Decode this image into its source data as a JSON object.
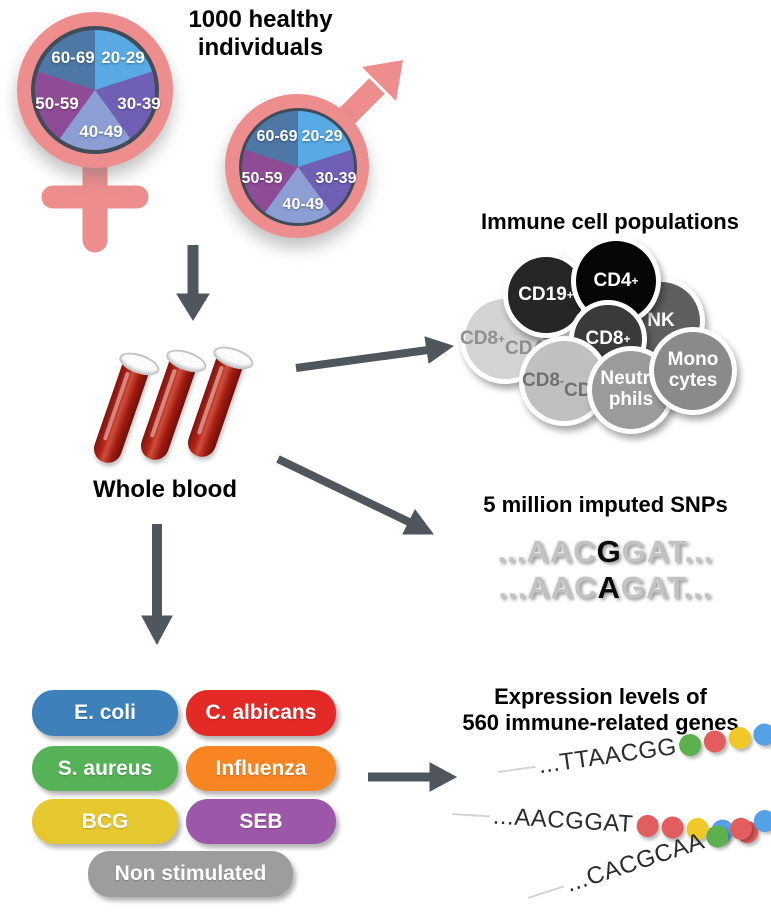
{
  "palette": {
    "symbol_salmon": "#ee8d8d",
    "arrow_gray": "#4f565e",
    "pie_border": "#404c5a",
    "blood_red": "#a81c12"
  },
  "cohort": {
    "title": "1000 healthy\nindividuals",
    "age_groups": [
      "20-29",
      "30-39",
      "40-49",
      "50-59",
      "60-69"
    ],
    "pie_colors": [
      "#58a9e4",
      "#6f60b5",
      "#8c9ed4",
      "#8e4b96",
      "#4d77a4"
    ]
  },
  "whole_blood": {
    "label": "Whole blood"
  },
  "immune_cells": {
    "title": "Immune cell populations",
    "cells": [
      {
        "label": "CD8+\nCD4+",
        "bg": "#d3d3d3",
        "fg": "#8f8f8f"
      },
      {
        "label": "CD19+",
        "bg": "#262626",
        "fg": "#ffffff"
      },
      {
        "label": "NK",
        "bg": "#5f5f5f",
        "fg": "#ffffff"
      },
      {
        "label": "CD4+",
        "bg": "#060606",
        "fg": "#ffffff"
      },
      {
        "label": "CD8+",
        "bg": "#3a3a3a",
        "fg": "#ffffff"
      },
      {
        "label": "CD8-\nCD4-",
        "bg": "#c0c0c0",
        "fg": "#707070"
      },
      {
        "label": "Neutro\nphils",
        "bg": "#9b9b9b",
        "fg": "#ffffff"
      },
      {
        "label": "Mono\ncytes",
        "bg": "#8a8a8a",
        "fg": "#ffffff"
      }
    ]
  },
  "snps": {
    "title": "5 million imputed SNPs",
    "sequences": [
      {
        "pre": "...AAC",
        "variant": "G",
        "post": "GAT..."
      },
      {
        "pre": "...AAC",
        "variant": "A",
        "post": "GAT..."
      }
    ]
  },
  "stimulations": {
    "items": [
      {
        "label": "E. coli",
        "color": "#3d80ba"
      },
      {
        "label": "C. albicans",
        "color": "#e42a26"
      },
      {
        "label": "S. aureus",
        "color": "#56b257"
      },
      {
        "label": "Influenza",
        "color": "#f68522"
      },
      {
        "label": "BCG",
        "color": "#e5c72f"
      },
      {
        "label": "SEB",
        "color": "#9c57a9"
      },
      {
        "label": "Non stimulated",
        "color": "#9d9d9d"
      }
    ]
  },
  "expression": {
    "title": "Expression levels of\n560 immune-related genes",
    "strands": [
      {
        "sequence": "...TTAACGG",
        "dots": [
          "#5db04e",
          "#e25d5d",
          "#f0c929",
          "#55a1e8",
          "#55a1e8"
        ]
      },
      {
        "sequence": "...AACGGAT",
        "dots": [
          "#e25d5d",
          "#e25d5d",
          "#f0c929",
          "#55a1e8",
          "#e25d5d"
        ]
      },
      {
        "sequence": "...CACGCAA",
        "dots": [
          "#5db04e",
          "#e25d5d",
          "#55a1e8",
          "#e25d5d",
          "#e25d5d"
        ]
      }
    ]
  }
}
